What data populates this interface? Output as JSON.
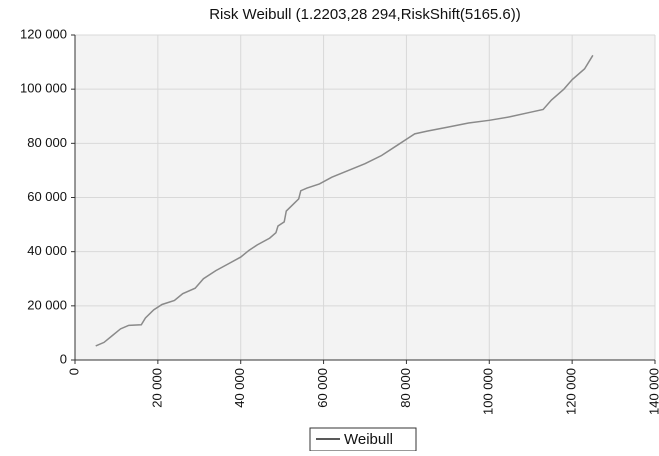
{
  "chart_data": {
    "type": "line",
    "title": "Risk Weibull (1.2203,28 294,RiskShift(5165.6))",
    "x": [
      5000,
      7000,
      9000,
      11000,
      13000,
      16000,
      17000,
      19000,
      21000,
      24000,
      26000,
      29000,
      31000,
      34000,
      37000,
      40000,
      42000,
      44000,
      47000,
      48500,
      49000,
      50500,
      51000,
      53000,
      54000,
      54500,
      56000,
      59000,
      62000,
      66000,
      70000,
      74000,
      78000,
      80000,
      82000,
      85000,
      90000,
      95000,
      100000,
      105000,
      110000,
      113000,
      115000,
      118000,
      120000,
      123000,
      125000
    ],
    "series": [
      {
        "name": "Weibull",
        "color": "#8a8a8a",
        "values": [
          5200,
          6500,
          9000,
          11500,
          12800,
          13000,
          15500,
          18500,
          20500,
          22000,
          24500,
          26500,
          30000,
          33000,
          35500,
          38000,
          40500,
          42500,
          45000,
          47000,
          49500,
          51000,
          55000,
          58000,
          59500,
          62500,
          63500,
          65000,
          67500,
          70000,
          72500,
          75500,
          79500,
          81500,
          83500,
          84500,
          86000,
          87500,
          88500,
          89800,
          91500,
          92500,
          96000,
          100000,
          103500,
          107500,
          112500
        ]
      }
    ],
    "xlim": [
      0,
      140000
    ],
    "xticks": [
      0,
      {
        "value": 20000,
        "label": "20 000"
      },
      {
        "value": 40000,
        "label": "40 000"
      },
      {
        "value": 60000,
        "label": "60 000"
      },
      {
        "value": 80000,
        "label": "80 000"
      },
      {
        "value": 100000,
        "label": "100 000"
      },
      {
        "value": 120000,
        "label": "120 000"
      },
      {
        "value": 140000,
        "label": "140 000"
      }
    ],
    "ylim": [
      0,
      120000
    ],
    "yticks": [
      0,
      {
        "value": 20000,
        "label": "20 000"
      },
      {
        "value": 40000,
        "label": "40 000"
      },
      {
        "value": 60000,
        "label": "60 000"
      },
      {
        "value": 80000,
        "label": "80 000"
      },
      {
        "value": 100000,
        "label": "100 000"
      },
      {
        "value": 120000,
        "label": "120 000"
      }
    ],
    "grid": true,
    "legend": "bottom"
  }
}
